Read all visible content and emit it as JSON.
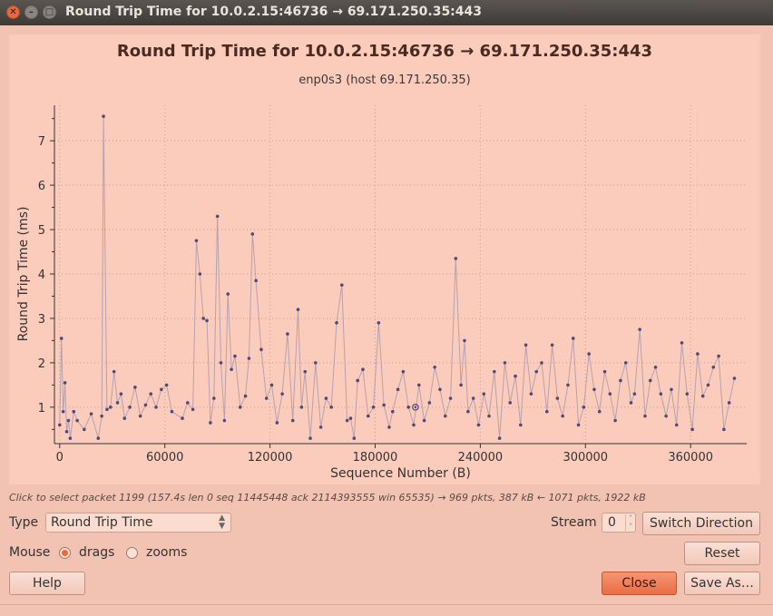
{
  "window": {
    "title": "Round Trip Time for 10.0.2.15:46736 → 69.171.250.35:443"
  },
  "plot": {
    "title": "Round Trip Time for 10.0.2.15:46736 → 69.171.250.35:443",
    "subtitle": "enp0s3 (host 69.171.250.35)"
  },
  "chart_data": {
    "type": "scatter",
    "title": "Round Trip Time for 10.0.2.15:46736 → 69.171.250.35:443",
    "xlabel": "Sequence Number (B)",
    "ylabel": "Round Trip Time (ms)",
    "xlim": [
      -3000,
      392000
    ],
    "ylim": [
      0.2,
      7.8
    ],
    "xticks": [
      0,
      60000,
      120000,
      180000,
      240000,
      300000,
      360000
    ],
    "yticks": [
      1,
      2,
      3,
      4,
      5,
      6,
      7
    ],
    "grid": true,
    "points_connected": true,
    "selected_point": {
      "x": 203000,
      "y": 1.0
    },
    "series": [
      {
        "x": [
          0,
          1000,
          2000,
          3000,
          4000,
          5000,
          6000,
          8000,
          10000,
          14000,
          18000,
          22000,
          24000,
          25000,
          27000,
          29000,
          31000,
          33000,
          35000,
          37000,
          40000,
          43000,
          46000,
          49000,
          52000,
          55000,
          58000,
          61000,
          64000,
          70000,
          73000,
          76000,
          78000,
          80000,
          82000,
          84000,
          86000,
          88000,
          90000,
          92000,
          94000,
          96000,
          98000,
          100000,
          103000,
          106000,
          108000,
          110000,
          112000,
          115000,
          118000,
          121000,
          124000,
          127000,
          130000,
          133000,
          136000,
          138000,
          140000,
          143000,
          146000,
          149000,
          152000,
          155000,
          158000,
          161000,
          164000,
          166000,
          168000,
          170000,
          173000,
          176000,
          179000,
          182000,
          185000,
          188000,
          190000,
          193000,
          196000,
          199000,
          202000,
          205000,
          208000,
          211000,
          214000,
          217000,
          220000,
          223000,
          226000,
          229000,
          231000,
          233000,
          236000,
          239000,
          242000,
          245000,
          248000,
          251000,
          254000,
          257000,
          260000,
          263000,
          266000,
          269000,
          272000,
          275000,
          278000,
          281000,
          284000,
          287000,
          290000,
          293000,
          296000,
          299000,
          302000,
          305000,
          308000,
          311000,
          314000,
          317000,
          320000,
          323000,
          326000,
          328000,
          331000,
          334000,
          337000,
          340000,
          343000,
          346000,
          349000,
          352000,
          355000,
          358000,
          361000,
          364000,
          367000,
          370000,
          373000,
          376000,
          379000,
          382000,
          385000
        ],
        "y": [
          0.6,
          2.55,
          0.9,
          1.55,
          0.45,
          0.7,
          0.3,
          0.9,
          0.7,
          0.5,
          0.85,
          0.3,
          0.8,
          7.55,
          0.95,
          1.0,
          1.8,
          1.1,
          1.3,
          0.75,
          1.0,
          1.45,
          0.8,
          1.05,
          1.3,
          1.0,
          1.4,
          1.5,
          0.9,
          0.75,
          1.1,
          0.95,
          4.75,
          4.0,
          3.0,
          2.95,
          0.65,
          1.2,
          5.3,
          2.0,
          0.7,
          3.55,
          1.85,
          2.15,
          1.0,
          1.25,
          2.1,
          4.9,
          3.85,
          2.3,
          1.2,
          1.5,
          0.65,
          1.3,
          2.65,
          0.7,
          3.2,
          1.0,
          1.8,
          0.3,
          2.0,
          0.55,
          1.2,
          1.0,
          2.9,
          3.75,
          0.7,
          0.75,
          0.3,
          1.6,
          1.85,
          0.8,
          1.0,
          2.9,
          1.05,
          0.55,
          0.9,
          1.4,
          1.8,
          1.0,
          0.6,
          1.5,
          0.7,
          1.1,
          1.9,
          1.4,
          0.8,
          1.2,
          4.35,
          1.5,
          2.5,
          0.9,
          1.2,
          0.6,
          1.3,
          0.8,
          1.8,
          0.3,
          2.0,
          1.1,
          1.7,
          0.6,
          2.4,
          1.3,
          1.8,
          2.0,
          0.9,
          2.4,
          1.2,
          0.8,
          1.5,
          2.55,
          0.6,
          1.0,
          2.2,
          1.4,
          0.9,
          1.8,
          1.3,
          0.7,
          1.6,
          2.0,
          1.1,
          1.3,
          2.75,
          0.8,
          1.6,
          1.9,
          1.3,
          0.8,
          1.4,
          0.6,
          2.45,
          1.3,
          0.5,
          2.2,
          1.25,
          1.5,
          1.9,
          2.15,
          0.5,
          1.1,
          1.65
        ]
      }
    ]
  },
  "hint": "Click to select packet 1199 (157.4s len 0 seq 11445448 ack 2114393555 win 65535) → 969 pkts, 387 kB ← 1071 pkts, 1922 kB",
  "controls": {
    "type_label": "Type",
    "type_value": "Round Trip Time",
    "stream_label": "Stream",
    "stream_value": "0",
    "switch_direction": "Switch Direction",
    "mouse_label": "Mouse",
    "drags_label": "drags",
    "zooms_label": "zooms",
    "mouse_mode": "drags",
    "reset": "Reset",
    "help": "Help",
    "close": "Close",
    "save_as": "Save As…"
  }
}
